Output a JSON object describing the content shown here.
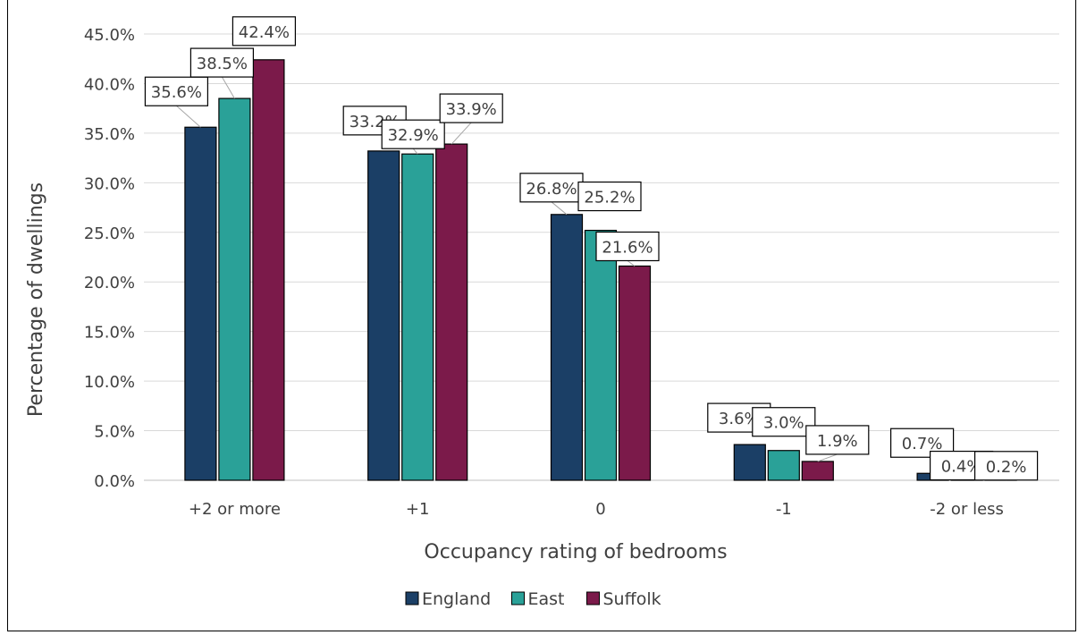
{
  "chart_data": {
    "type": "bar",
    "title": "",
    "xlabel": "Occupancy rating of bedrooms",
    "ylabel": "Percentage of dwellings",
    "ylim": [
      0,
      45
    ],
    "yticks": [
      "0.0%",
      "5.0%",
      "10.0%",
      "15.0%",
      "20.0%",
      "25.0%",
      "30.0%",
      "35.0%",
      "40.0%",
      "45.0%"
    ],
    "categories": [
      "+2 or more",
      "+1",
      "0",
      "-1",
      "-2 or less"
    ],
    "series": [
      {
        "name": "England",
        "color": "#1b3f66",
        "values": [
          35.6,
          33.2,
          26.8,
          3.6,
          0.7
        ],
        "labels": [
          "35.6%",
          "33.2%",
          "26.8%",
          "3.6%",
          "0.7%"
        ]
      },
      {
        "name": "East",
        "color": "#2aa198",
        "values": [
          38.5,
          32.9,
          25.2,
          3.0,
          0.4
        ],
        "labels": [
          "38.5%",
          "32.9%",
          "25.2%",
          "3.0%",
          "0.4%"
        ]
      },
      {
        "name": "Suffolk",
        "color": "#7b1a4a",
        "values": [
          42.4,
          33.9,
          21.6,
          1.9,
          0.2
        ],
        "labels": [
          "42.4%",
          "33.9%",
          "21.6%",
          "1.9%",
          "0.2%"
        ]
      }
    ],
    "grid": true,
    "legend_position": "bottom"
  }
}
